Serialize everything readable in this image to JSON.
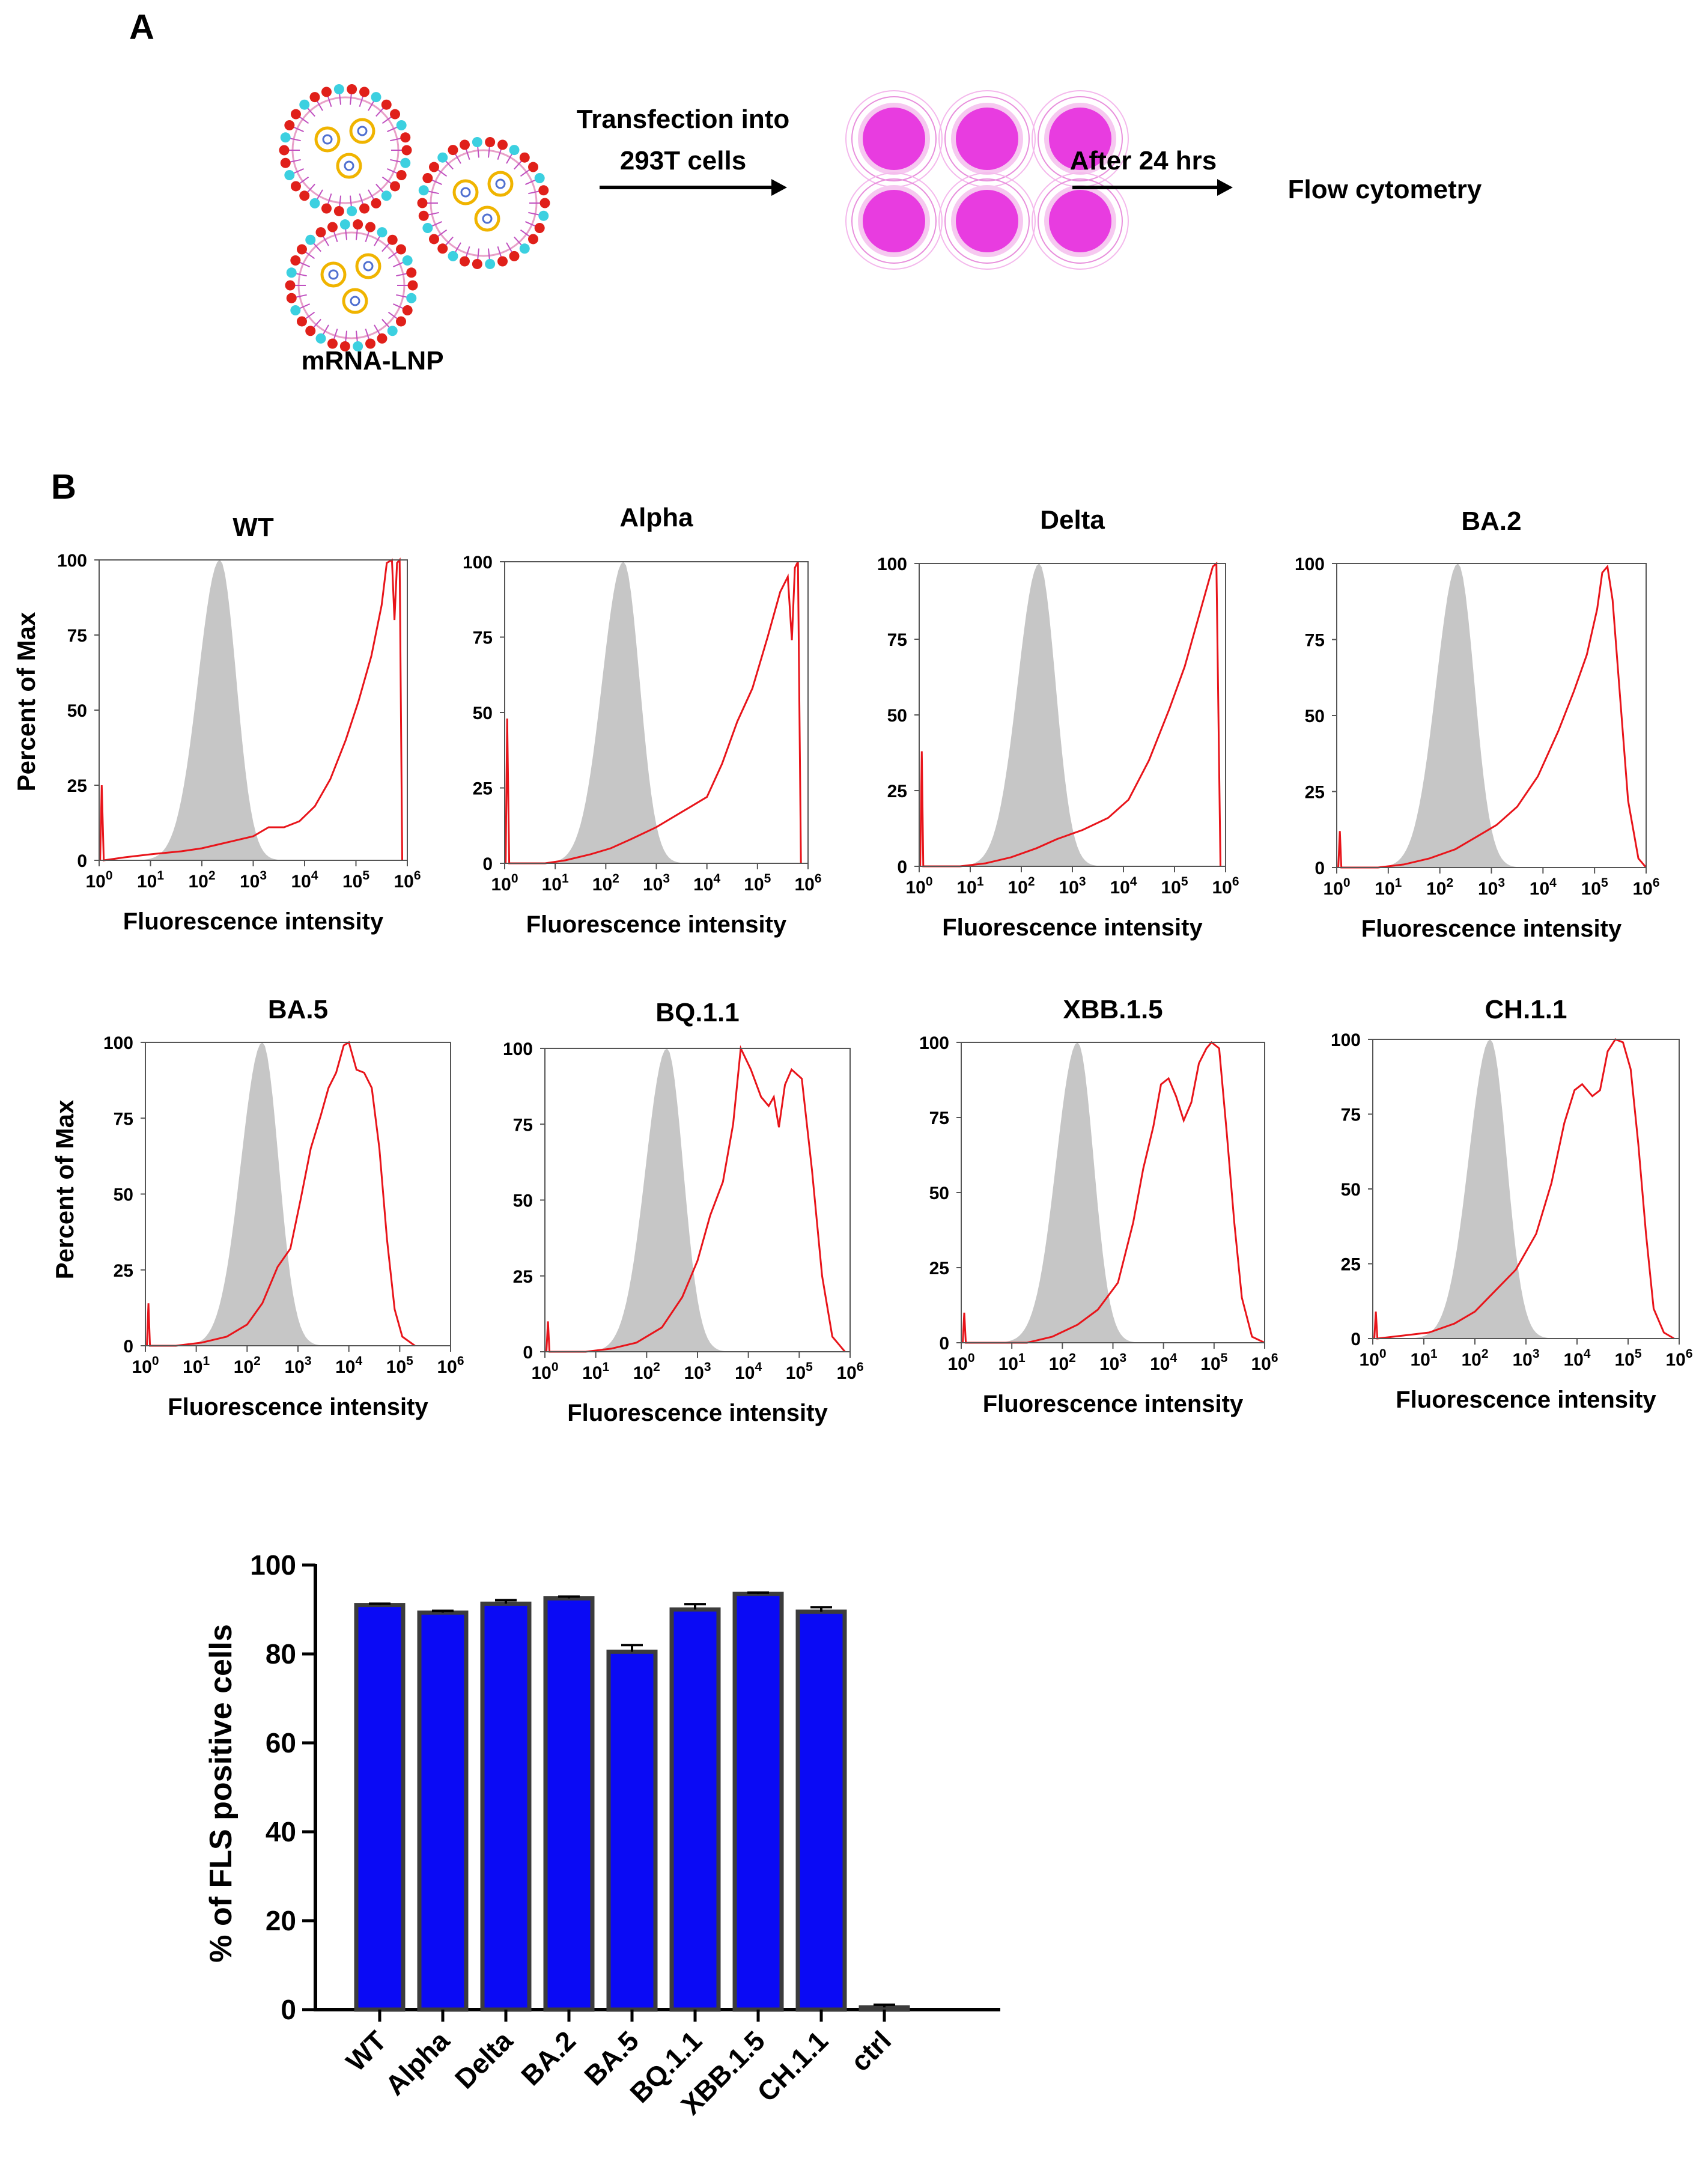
{
  "panel_a": {
    "letter": "A",
    "lnp_label": "mRNA-LNP",
    "step1_line1": "Transfection into",
    "step1_line2": "293T cells",
    "step2_label": "After 24 hrs",
    "step3_label": "Flow cytometry",
    "colors": {
      "well": "#e83ce0",
      "lipid_head_red": "#e0201a",
      "lipid_head_cyan": "#3cd0e0",
      "mrna": "#f0b400"
    }
  },
  "panel_b": {
    "letter": "B",
    "hist_ylabel": "Percent of Max",
    "hist_xlabel": "Fluorescence intensity",
    "hist_yticks": [
      "0",
      "25",
      "50",
      "75",
      "100"
    ],
    "hist_xtick_base": "10",
    "hist_xtick_exps": [
      "0",
      "1",
      "2",
      "3",
      "4",
      "5",
      "6"
    ],
    "colors": {
      "control_fill": "#c6c6c6",
      "sample_line": "#e8141a",
      "bar_fill": "#0a0af5",
      "bar_edge": "#3c3c3c"
    }
  },
  "chart_data": [
    {
      "type": "area",
      "panel": "flow-histograms",
      "xscale": "log10",
      "xlim": [
        1,
        1000000
      ],
      "ylim": [
        0,
        100
      ],
      "xlabel": "Fluorescence intensity",
      "ylabel": "Percent of Max",
      "panels": [
        {
          "title": "WT",
          "control_peak_log": 2.35,
          "sample": [
            [
              0.02,
              0
            ],
            [
              0.05,
              25
            ],
            [
              0.09,
              0
            ],
            [
              0.5,
              1
            ],
            [
              1,
              2
            ],
            [
              1.6,
              3
            ],
            [
              2,
              4
            ],
            [
              2.5,
              6
            ],
            [
              3,
              8
            ],
            [
              3.3,
              11
            ],
            [
              3.6,
              11
            ],
            [
              3.9,
              13
            ],
            [
              4.2,
              18
            ],
            [
              4.5,
              27
            ],
            [
              4.8,
              40
            ],
            [
              5.05,
              53
            ],
            [
              5.3,
              68
            ],
            [
              5.5,
              85
            ],
            [
              5.6,
              99
            ],
            [
              5.7,
              100
            ],
            [
              5.75,
              80
            ],
            [
              5.8,
              99
            ],
            [
              5.85,
              100
            ],
            [
              5.9,
              0
            ]
          ]
        },
        {
          "title": "Alpha",
          "control_peak_log": 2.35,
          "sample": [
            [
              0.02,
              0
            ],
            [
              0.05,
              48
            ],
            [
              0.09,
              0
            ],
            [
              0.8,
              0
            ],
            [
              1.2,
              1
            ],
            [
              1.7,
              3
            ],
            [
              2.1,
              5
            ],
            [
              2.5,
              8
            ],
            [
              3,
              12
            ],
            [
              3.5,
              17
            ],
            [
              4,
              22
            ],
            [
              4.3,
              33
            ],
            [
              4.6,
              47
            ],
            [
              4.9,
              58
            ],
            [
              5.2,
              75
            ],
            [
              5.45,
              90
            ],
            [
              5.6,
              95
            ],
            [
              5.68,
              74
            ],
            [
              5.74,
              98
            ],
            [
              5.8,
              100
            ],
            [
              5.86,
              0
            ]
          ]
        },
        {
          "title": "Delta",
          "control_peak_log": 2.35,
          "sample": [
            [
              0.02,
              0
            ],
            [
              0.05,
              38
            ],
            [
              0.08,
              0
            ],
            [
              0.8,
              0
            ],
            [
              1.3,
              1
            ],
            [
              1.8,
              3
            ],
            [
              2.3,
              6
            ],
            [
              2.7,
              9
            ],
            [
              3.2,
              12
            ],
            [
              3.7,
              16
            ],
            [
              4.1,
              22
            ],
            [
              4.5,
              35
            ],
            [
              4.9,
              52
            ],
            [
              5.2,
              66
            ],
            [
              5.4,
              78
            ],
            [
              5.6,
              90
            ],
            [
              5.75,
              99
            ],
            [
              5.82,
              100
            ],
            [
              5.9,
              0
            ]
          ]
        },
        {
          "title": "BA.2",
          "control_peak_log": 2.35,
          "sample": [
            [
              0.03,
              0
            ],
            [
              0.06,
              12
            ],
            [
              0.09,
              0
            ],
            [
              0.8,
              0
            ],
            [
              1.3,
              1
            ],
            [
              1.8,
              3
            ],
            [
              2.3,
              6
            ],
            [
              2.7,
              10
            ],
            [
              3.1,
              14
            ],
            [
              3.5,
              20
            ],
            [
              3.9,
              30
            ],
            [
              4.3,
              45
            ],
            [
              4.6,
              58
            ],
            [
              4.85,
              70
            ],
            [
              5.05,
              85
            ],
            [
              5.15,
              97
            ],
            [
              5.25,
              99
            ],
            [
              5.35,
              88
            ],
            [
              5.5,
              55
            ],
            [
              5.65,
              22
            ],
            [
              5.85,
              3
            ],
            [
              6,
              0
            ]
          ]
        },
        {
          "title": "BA.5",
          "control_peak_log": 2.3,
          "sample": [
            [
              0.03,
              0
            ],
            [
              0.06,
              14
            ],
            [
              0.09,
              0
            ],
            [
              0.6,
              0
            ],
            [
              1.1,
              1
            ],
            [
              1.6,
              3
            ],
            [
              2,
              7
            ],
            [
              2.3,
              14
            ],
            [
              2.6,
              26
            ],
            [
              2.85,
              32
            ],
            [
              3.05,
              48
            ],
            [
              3.25,
              65
            ],
            [
              3.45,
              76
            ],
            [
              3.6,
              85
            ],
            [
              3.75,
              90
            ],
            [
              3.9,
              99
            ],
            [
              4,
              100
            ],
            [
              4.15,
              91
            ],
            [
              4.3,
              90
            ],
            [
              4.45,
              85
            ],
            [
              4.6,
              65
            ],
            [
              4.75,
              35
            ],
            [
              4.9,
              12
            ],
            [
              5.05,
              3
            ],
            [
              5.3,
              0
            ]
          ]
        },
        {
          "title": "BQ.1.1",
          "control_peak_log": 2.4,
          "sample": [
            [
              0.03,
              0
            ],
            [
              0.06,
              10
            ],
            [
              0.09,
              0
            ],
            [
              0.8,
              0
            ],
            [
              1.3,
              1
            ],
            [
              1.8,
              3
            ],
            [
              2.3,
              8
            ],
            [
              2.7,
              18
            ],
            [
              3,
              30
            ],
            [
              3.25,
              45
            ],
            [
              3.5,
              56
            ],
            [
              3.7,
              75
            ],
            [
              3.85,
              100
            ],
            [
              4.05,
              93
            ],
            [
              4.25,
              84
            ],
            [
              4.4,
              81
            ],
            [
              4.5,
              84
            ],
            [
              4.6,
              74
            ],
            [
              4.72,
              88
            ],
            [
              4.85,
              93
            ],
            [
              5.05,
              90
            ],
            [
              5.25,
              60
            ],
            [
              5.45,
              25
            ],
            [
              5.65,
              5
            ],
            [
              5.9,
              0
            ]
          ]
        },
        {
          "title": "XBB.1.5",
          "control_peak_log": 2.3,
          "sample": [
            [
              0.03,
              0
            ],
            [
              0.06,
              10
            ],
            [
              0.09,
              0
            ],
            [
              0.8,
              0
            ],
            [
              1.3,
              0
            ],
            [
              1.8,
              2
            ],
            [
              2.3,
              6
            ],
            [
              2.7,
              11
            ],
            [
              3.1,
              20
            ],
            [
              3.4,
              40
            ],
            [
              3.6,
              58
            ],
            [
              3.8,
              72
            ],
            [
              3.95,
              86
            ],
            [
              4.1,
              88
            ],
            [
              4.25,
              82
            ],
            [
              4.4,
              74
            ],
            [
              4.55,
              80
            ],
            [
              4.7,
              93
            ],
            [
              4.85,
              98
            ],
            [
              4.95,
              100
            ],
            [
              5.1,
              98
            ],
            [
              5.25,
              70
            ],
            [
              5.4,
              40
            ],
            [
              5.55,
              15
            ],
            [
              5.75,
              2
            ],
            [
              6,
              0
            ]
          ]
        },
        {
          "title": "CH.1.1",
          "control_peak_log": 2.3,
          "sample": [
            [
              0.03,
              0
            ],
            [
              0.06,
              9
            ],
            [
              0.09,
              0
            ],
            [
              0.6,
              1
            ],
            [
              1.1,
              2
            ],
            [
              1.6,
              5
            ],
            [
              2,
              9
            ],
            [
              2.4,
              16
            ],
            [
              2.8,
              23
            ],
            [
              3.2,
              35
            ],
            [
              3.5,
              52
            ],
            [
              3.75,
              72
            ],
            [
              3.95,
              83
            ],
            [
              4.1,
              85
            ],
            [
              4.3,
              81
            ],
            [
              4.45,
              83
            ],
            [
              4.6,
              96
            ],
            [
              4.75,
              100
            ],
            [
              4.9,
              99
            ],
            [
              5.05,
              90
            ],
            [
              5.2,
              65
            ],
            [
              5.35,
              35
            ],
            [
              5.5,
              10
            ],
            [
              5.7,
              2
            ],
            [
              5.9,
              0
            ]
          ]
        }
      ]
    },
    {
      "type": "bar",
      "panel": "positive-cells",
      "title": "",
      "xlabel": "",
      "ylabel": "% of FLS positive cells",
      "ylim": [
        0,
        100
      ],
      "yticks": [
        "0",
        "20",
        "40",
        "60",
        "80",
        "100"
      ],
      "categories": [
        "WT",
        "Alpha",
        "Delta",
        "BA.2",
        "BA.5",
        "BQ.1.1",
        "XBB.1.5",
        "CH.1.1",
        "ctrl"
      ],
      "values": [
        91.0,
        89.3,
        91.3,
        92.5,
        80.5,
        90.0,
        93.5,
        89.5,
        0.5
      ],
      "errors": [
        0.3,
        0.4,
        0.8,
        0.4,
        1.5,
        1.2,
        0.3,
        1.0,
        0.6
      ]
    }
  ]
}
